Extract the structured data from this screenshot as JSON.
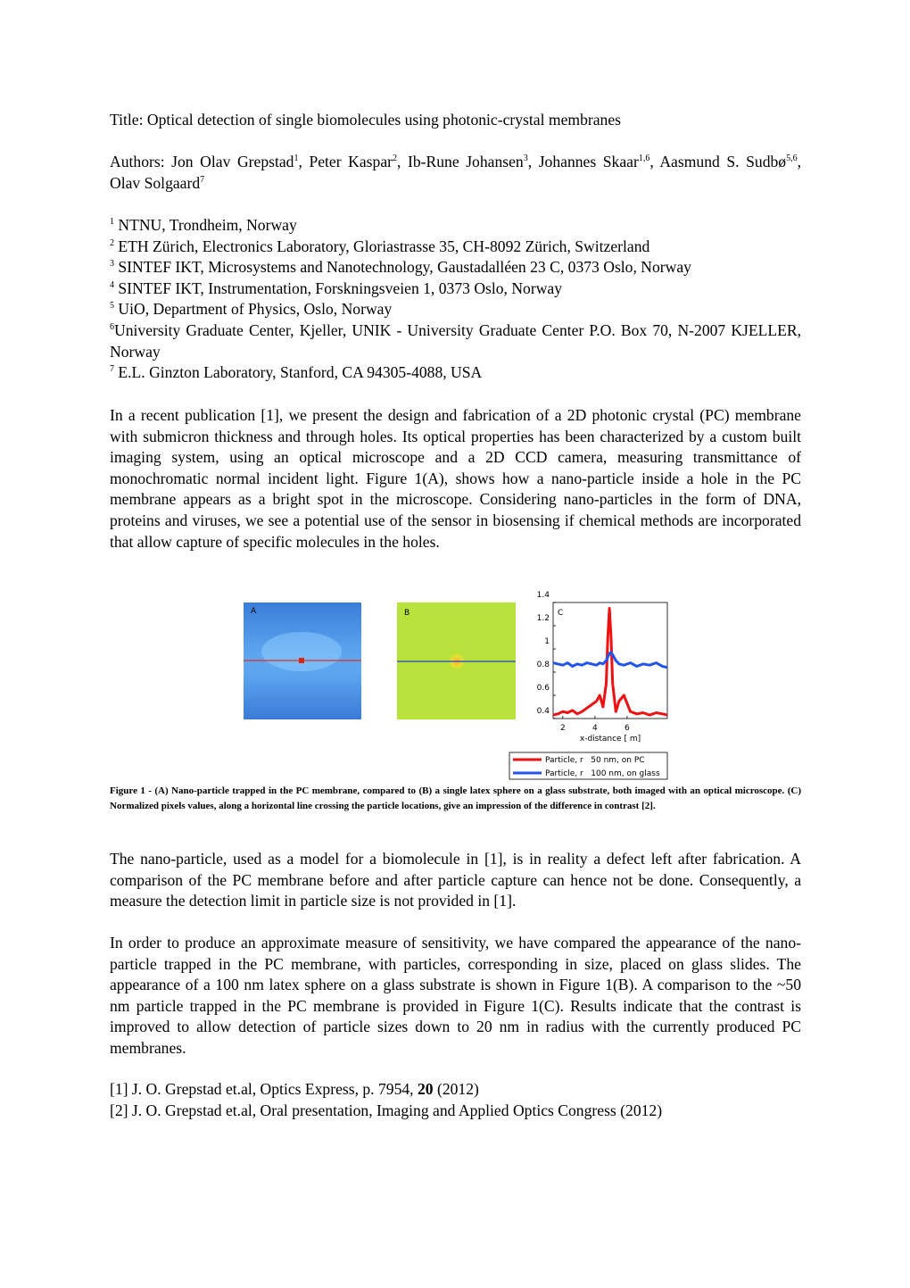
{
  "title": "Title: Optical detection of single biomolecules using photonic-crystal membranes",
  "authors": [
    {
      "t": "Authors: Jon Olav Grepstad"
    },
    {
      "sup": "1"
    },
    {
      "t": ", Peter Kaspar"
    },
    {
      "sup": "2"
    },
    {
      "t": ", Ib-Rune Johansen"
    },
    {
      "sup": "3"
    },
    {
      "t": ", Johannes Skaar"
    },
    {
      "sup": "1,6"
    },
    {
      "t": ", Aasmund S. Sudbø"
    },
    {
      "sup": "5,6"
    },
    {
      "t": ", Olav Solgaard"
    },
    {
      "sup": "7"
    }
  ],
  "affiliations": [
    {
      "num": "1",
      "text": " NTNU, Trondheim, Norway"
    },
    {
      "num": "2",
      "text": " ETH Zürich, Electronics Laboratory, Gloriastrasse 35, CH-8092 Zürich, Switzerland"
    },
    {
      "num": "3",
      "text": " SINTEF IKT, Microsystems and Nanotechnology, Gaustadalléen 23 C, 0373 Oslo, Norway"
    },
    {
      "num": "4",
      "text": " SINTEF IKT, Instrumentation, Forskningsveien 1, 0373 Oslo, Norway"
    },
    {
      "num": "5",
      "text": " UiO, Department of Physics, Oslo, Norway"
    },
    {
      "num": "6",
      "text": "University Graduate Center, Kjeller, UNIK - University Graduate Center P.O. Box 70, N-2007 KJELLER, Norway"
    },
    {
      "num": "7",
      "text": " E.L. Ginzton Laboratory, Stanford, CA 94305-4088, USA"
    }
  ],
  "paragraphs": [
    "In a recent publication [1], we present the design and fabrication of a 2D photonic crystal (PC) membrane with submicron thickness and through holes. Its optical properties has been characterized by a custom built imaging system, using an optical microscope and a 2D CCD camera, measuring transmittance of monochromatic normal incident light. Figure 1(A), shows how a nano-particle inside a hole in the PC membrane appears as a bright spot in the microscope. Considering nano-particles in the form of DNA, proteins and viruses, we see a potential use of the sensor in biosensing if chemical methods are incorporated that allow capture of specific molecules in the holes.",
    "The nano-particle, used as a model for a biomolecule in [1], is in reality a defect left after fabrication. A comparison of the PC membrane before and after particle capture can hence not be done. Consequently, a measure the detection limit in particle size is not provided in [1].",
    "In order to produce an approximate measure of sensitivity, we have compared the appearance of the nano-particle trapped in the PC membrane, with particles, corresponding in size, placed on glass slides. The appearance of a 100 nm latex sphere on a glass substrate is shown in Figure 1(B). A comparison to the ~50 nm particle trapped in the PC membrane is provided in Figure 1(C). Results indicate that the contrast is improved to allow detection of particle sizes down to 20 nm in radius with the currently produced PC membranes."
  ],
  "figure": {
    "panels": [
      "A",
      "B",
      "C"
    ],
    "caption": "Figure 1 - (A) Nano-particle trapped in the PC membrane, compared to (B) a single latex sphere on a glass substrate, both imaged with an optical microscope. (C) Normalized pixels values, along a horizontal line crossing the particle locations, give an impression of the difference in contrast [2]."
  },
  "chart_data": {
    "type": "line",
    "x_label": "x-distance [ m]",
    "x": [
      1.4,
      1.7,
      2,
      2.3,
      2.6,
      2.9,
      3.2,
      3.5,
      3.8,
      4.1,
      4.3,
      4.5,
      4.7,
      4.8,
      4.9,
      5.0,
      5.1,
      5.3,
      5.5,
      5.8,
      6.2,
      6.6,
      7,
      7.4,
      7.8,
      8.2,
      8.5
    ],
    "series": [
      {
        "name": "Particle, r   50 nm, on PC",
        "color": "#ee1111",
        "values": [
          0.43,
          0.44,
          0.46,
          0.45,
          0.47,
          0.44,
          0.46,
          0.49,
          0.52,
          0.55,
          0.6,
          0.5,
          0.7,
          1.1,
          1.35,
          1.1,
          0.7,
          0.46,
          0.55,
          0.6,
          0.46,
          0.44,
          0.45,
          0.43,
          0.45,
          0.44,
          0.43
        ]
      },
      {
        "name": "Particle, r   100 nm, on glass",
        "color": "#2255ee",
        "values": [
          0.88,
          0.87,
          0.86,
          0.88,
          0.85,
          0.87,
          0.86,
          0.88,
          0.87,
          0.86,
          0.88,
          0.87,
          0.9,
          0.93,
          0.96,
          0.97,
          0.95,
          0.9,
          0.87,
          0.86,
          0.88,
          0.85,
          0.87,
          0.86,
          0.88,
          0.85,
          0.84
        ]
      }
    ],
    "xlim": [
      1.4,
      8.5
    ],
    "xticks": [
      2,
      4,
      6
    ],
    "ylim": [
      0.4,
      1.4
    ],
    "yticks": [
      0.4,
      0.6,
      0.8,
      1,
      1.2,
      1.4
    ]
  },
  "references": [
    [
      {
        "t": "[1] J. O. Grepstad et.al, Optics Express, p. 7954, "
      },
      {
        "b": "20"
      },
      {
        "t": " (2012)"
      }
    ],
    [
      {
        "t": "[2] J. O. Grepstad et.al, Oral presentation, Imaging and Applied Optics Congress (2012)"
      }
    ]
  ]
}
